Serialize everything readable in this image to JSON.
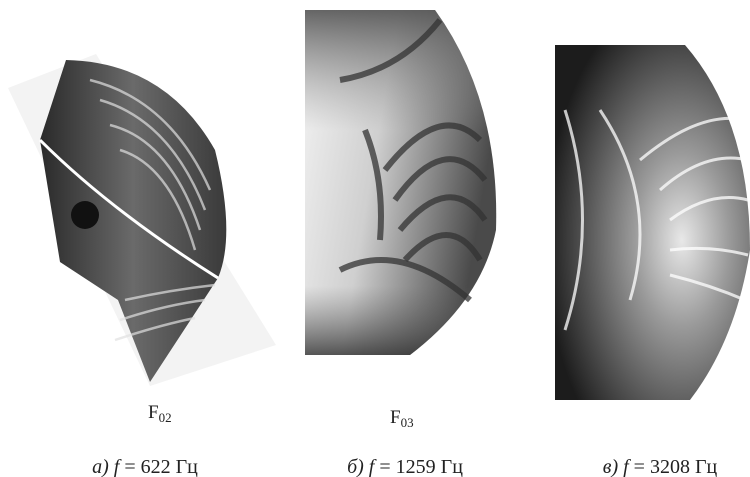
{
  "panels": [
    {
      "mode": {
        "base": "F",
        "sub": "02"
      },
      "caption": {
        "label": "а)",
        "symbol": "f",
        "text": "= 622 Гц"
      }
    },
    {
      "mode": {
        "base": "F",
        "sub": "03"
      },
      "caption": {
        "label": "б)",
        "symbol": "f",
        "text": "= 1259 Гц"
      }
    },
    {
      "caption": {
        "label": "в)",
        "symbol": "f",
        "text": "= 3208 Гц"
      }
    }
  ]
}
